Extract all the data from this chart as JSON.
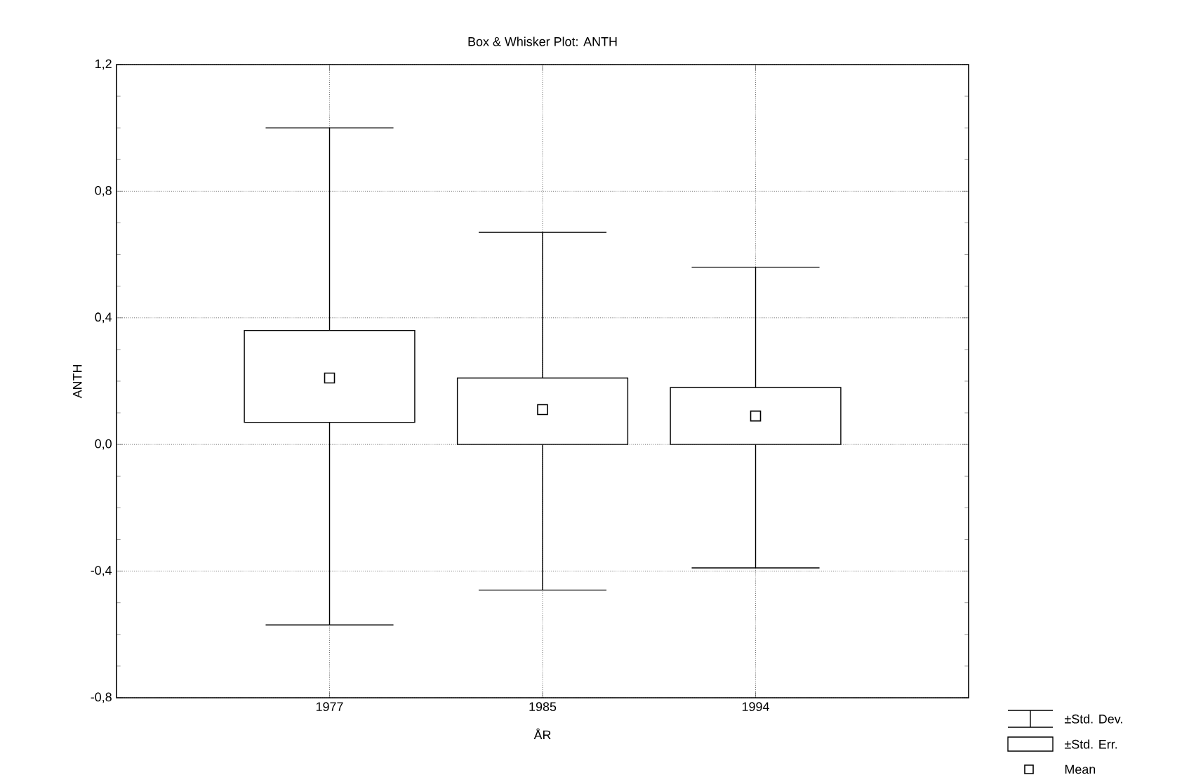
{
  "chart_data": {
    "type": "box",
    "title": "Box & Whisker Plot: ANTH",
    "xlabel": "ÅR",
    "ylabel": "ANTH",
    "categories": [
      "1977",
      "1985",
      "1994"
    ],
    "boxes": [
      {
        "low": -0.57,
        "q1": 0.07,
        "q3": 0.36,
        "high": 1.0,
        "mean": 0.21
      },
      {
        "low": -0.46,
        "q1": 0.0,
        "q3": 0.21,
        "high": 0.67,
        "mean": 0.11
      },
      {
        "low": -0.39,
        "q1": 0.0,
        "q3": 0.18,
        "high": 0.56,
        "mean": 0.09
      }
    ],
    "color": "#000000",
    "ylim": [
      -0.8,
      1.2
    ],
    "yticks": [
      {
        "value": -0.8,
        "label": "-0,8"
      },
      {
        "value": -0.4,
        "label": "-0,4"
      },
      {
        "value": 0.0,
        "label": "0,0"
      },
      {
        "value": 0.4,
        "label": "0,4"
      },
      {
        "value": 0.8,
        "label": "0,8"
      },
      {
        "value": 1.2,
        "label": "1,2"
      }
    ],
    "grid": true,
    "marker": "square",
    "annotations": [
      "±Std. Dev.",
      "±Std. Err.",
      "Mean"
    ]
  }
}
